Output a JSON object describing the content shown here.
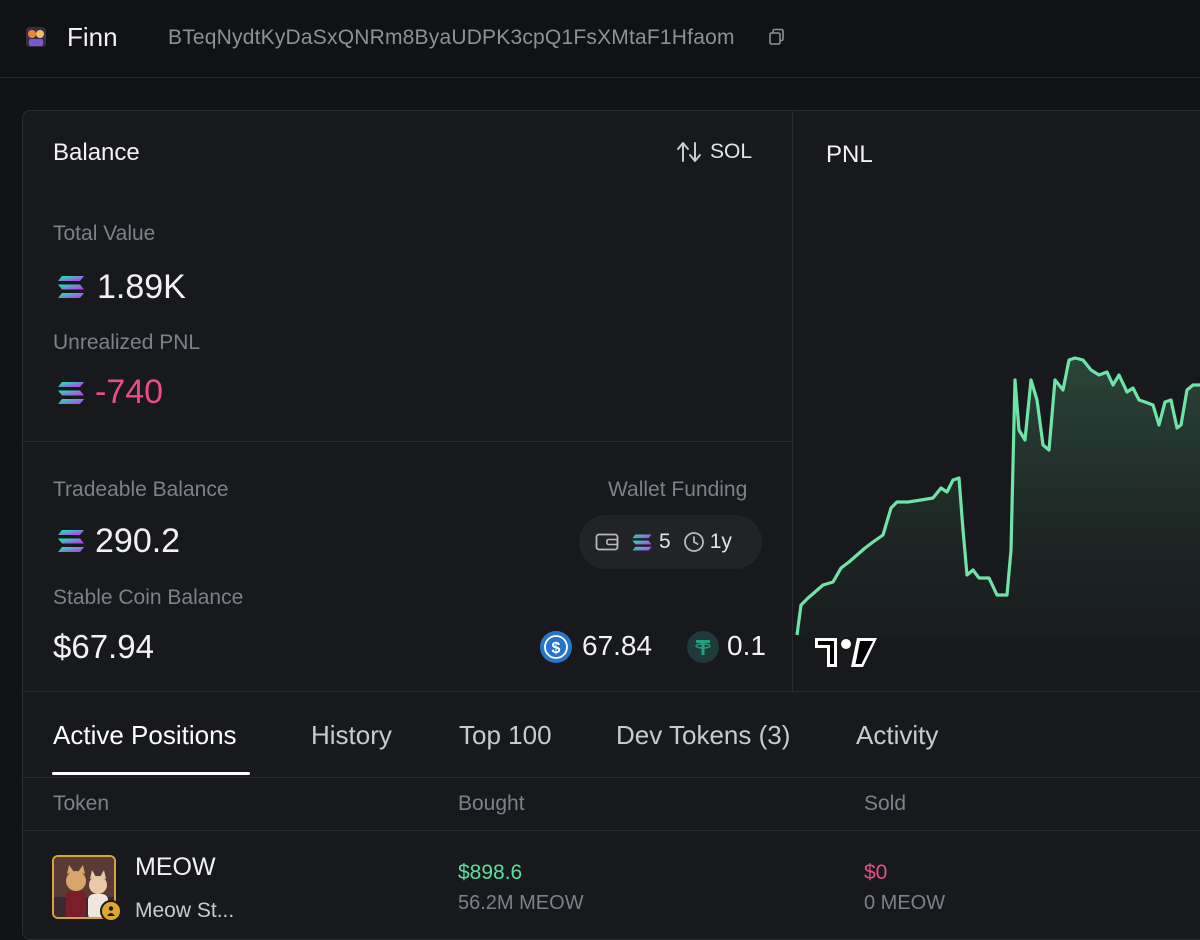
{
  "header": {
    "user_name": "Finn",
    "address": "BTeqNydtKyDaSxQNRm8ByaUDPK3cpQ1FsXMtaF1Hfaom"
  },
  "balance": {
    "title": "Balance",
    "currency_toggle": "SOL",
    "total_value_label": "Total Value",
    "total_value": "1.89K",
    "unrealized_pnl_label": "Unrealized PNL",
    "unrealized_pnl": "-740",
    "tradeable_label": "Tradeable Balance",
    "tradeable_value": "290.2",
    "wallet_funding_label": "Wallet Funding",
    "wallet_funding_amount": "5",
    "wallet_funding_age": "1y",
    "stable_label": "Stable Coin Balance",
    "stable_value": "$67.94",
    "usdc_value": "67.84",
    "usdt_value": "0.1"
  },
  "pnl": {
    "title": "PNL"
  },
  "tabs": [
    {
      "label": "Active Positions"
    },
    {
      "label": "History"
    },
    {
      "label": "Top 100"
    },
    {
      "label": "Dev Tokens (3)"
    },
    {
      "label": "Activity"
    }
  ],
  "table": {
    "headers": [
      "Token",
      "Bought",
      "Sold"
    ],
    "rows": [
      {
        "symbol": "MEOW",
        "name": "Meow St...",
        "bought_usd": "$898.6",
        "bought_amount": "56.2M MEOW",
        "sold_usd": "$0",
        "sold_amount": "0 MEOW"
      }
    ]
  },
  "colors": {
    "positive": "#5ae0a0",
    "negative": "#e84e86",
    "background": "#111214",
    "card": "#18191c"
  },
  "icons": [
    "solana-icon",
    "copy-icon",
    "sort-arrows-icon",
    "wallet-icon",
    "clock-icon",
    "usdc-icon",
    "usdt-icon",
    "tradingview-logo"
  ]
}
